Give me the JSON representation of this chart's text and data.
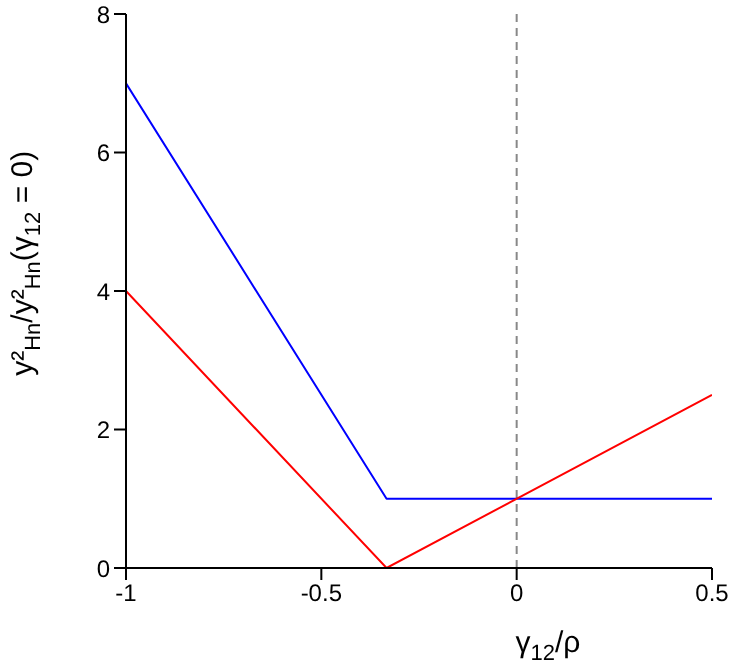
{
  "chart_data": {
    "type": "line",
    "xlabel": "γ$_{12}$/ρ",
    "ylabel": "y²$_{Hn}$/y²$_{Hn}$(γ$_{12}$ = 0)",
    "series": [
      {
        "color": "#0000ff",
        "x": [
          -1,
          -0.333,
          0.5
        ],
        "values": [
          7,
          1,
          1
        ]
      },
      {
        "color": "#ff0000",
        "x": [
          -1,
          -0.333,
          0.5
        ],
        "values": [
          4,
          0,
          2.5
        ]
      }
    ],
    "xlim": [
      -1,
      0.5
    ],
    "xticks": [
      -1,
      -0.5,
      0,
      0.5
    ],
    "ylim": [
      0,
      8
    ],
    "yticks": [
      0,
      2,
      4,
      6,
      8
    ],
    "ref_lines": [
      {
        "axis": "x",
        "value": 0,
        "color": "#888888",
        "line_style": "dashed"
      }
    ],
    "grid": false,
    "legend": false
  }
}
